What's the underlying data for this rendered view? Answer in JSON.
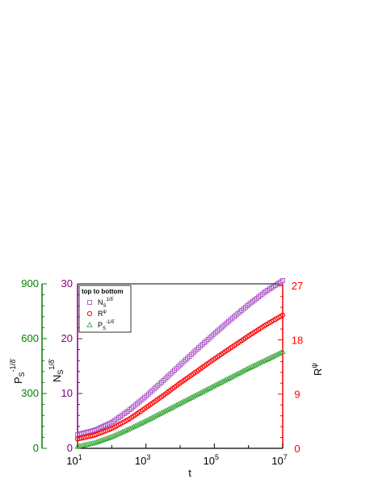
{
  "chart_data": {
    "type": "scatter",
    "x_axis": {
      "label": "t",
      "scale": "log",
      "range": [
        10,
        10000000
      ],
      "tick_values": [
        10,
        1000,
        100000,
        10000000
      ],
      "tick_labels": [
        {
          "base": "10",
          "exp": "1"
        },
        {
          "base": "10",
          "exp": "3"
        },
        {
          "base": "10",
          "exp": "5"
        },
        {
          "base": "10",
          "exp": "7"
        }
      ]
    },
    "y_axes": [
      {
        "id": "main",
        "side": "left",
        "label": {
          "base": "N",
          "sub": "S",
          "sup": "1/δ̄"
        },
        "range": [
          0,
          30
        ],
        "ticks": [
          0,
          10,
          20,
          30
        ],
        "color": "#800080"
      },
      {
        "id": "p",
        "side": "left-outer",
        "label": {
          "base": "P",
          "sub": "S",
          "sup": "-1/δ̄"
        },
        "range": [
          0,
          900
        ],
        "ticks": [
          0,
          300,
          600,
          900
        ],
        "color": "#008000"
      },
      {
        "id": "r",
        "side": "right",
        "label": {
          "base": "R",
          "sup": "ψ"
        },
        "range": [
          0,
          27.3
        ],
        "ticks": [
          0,
          9,
          18,
          27
        ],
        "color": "#ff0000"
      }
    ],
    "legend": {
      "title": "top to bottom",
      "placement": "top-left",
      "entries": [
        {
          "marker": "square",
          "base": "N",
          "sub": "S",
          "sup": "1/δ̄"
        },
        {
          "marker": "circle",
          "base": "R",
          "sub": "",
          "sup": "ψ"
        },
        {
          "marker": "triangle",
          "base": "P",
          "sub": "S",
          "sup": "-1/δ̄"
        }
      ]
    },
    "series": [
      {
        "marker": "square",
        "color": "#a040c0",
        "axis": "main",
        "points": [
          [
            10,
            2.5
          ],
          [
            31.6,
            3.3
          ],
          [
            100,
            4.7
          ],
          [
            316,
            6.9
          ],
          [
            1000,
            9.5
          ],
          [
            3162,
            12.3
          ],
          [
            10000,
            15.2
          ],
          [
            31623,
            18.1
          ],
          [
            100000,
            20.9
          ],
          [
            316228,
            23.6
          ],
          [
            1000000,
            26.2
          ],
          [
            3162278,
            28.6
          ],
          [
            10000000,
            30.6
          ]
        ]
      },
      {
        "marker": "circle",
        "color": "#ff0000",
        "axis": "main",
        "points": [
          [
            10,
            1.7
          ],
          [
            31.6,
            2.4
          ],
          [
            100,
            3.6
          ],
          [
            316,
            5.3
          ],
          [
            1000,
            7.4
          ],
          [
            3162,
            9.6
          ],
          [
            10000,
            11.9
          ],
          [
            31623,
            14.1
          ],
          [
            100000,
            16.3
          ],
          [
            316228,
            18.4
          ],
          [
            1000000,
            20.5
          ],
          [
            3162278,
            22.5
          ],
          [
            10000000,
            24.3
          ]
        ]
      },
      {
        "marker": "triangle",
        "color": "#2ca02c",
        "axis": "main",
        "points": [
          [
            10,
            0.3
          ],
          [
            31.6,
            1.0
          ],
          [
            100,
            2.1
          ],
          [
            316,
            3.5
          ],
          [
            1000,
            5.0
          ],
          [
            3162,
            6.6
          ],
          [
            10000,
            8.2
          ],
          [
            31623,
            9.8
          ],
          [
            100000,
            11.4
          ],
          [
            316228,
            13.0
          ],
          [
            1000000,
            14.6
          ],
          [
            3162278,
            16.1
          ],
          [
            10000000,
            17.6
          ]
        ]
      }
    ]
  }
}
